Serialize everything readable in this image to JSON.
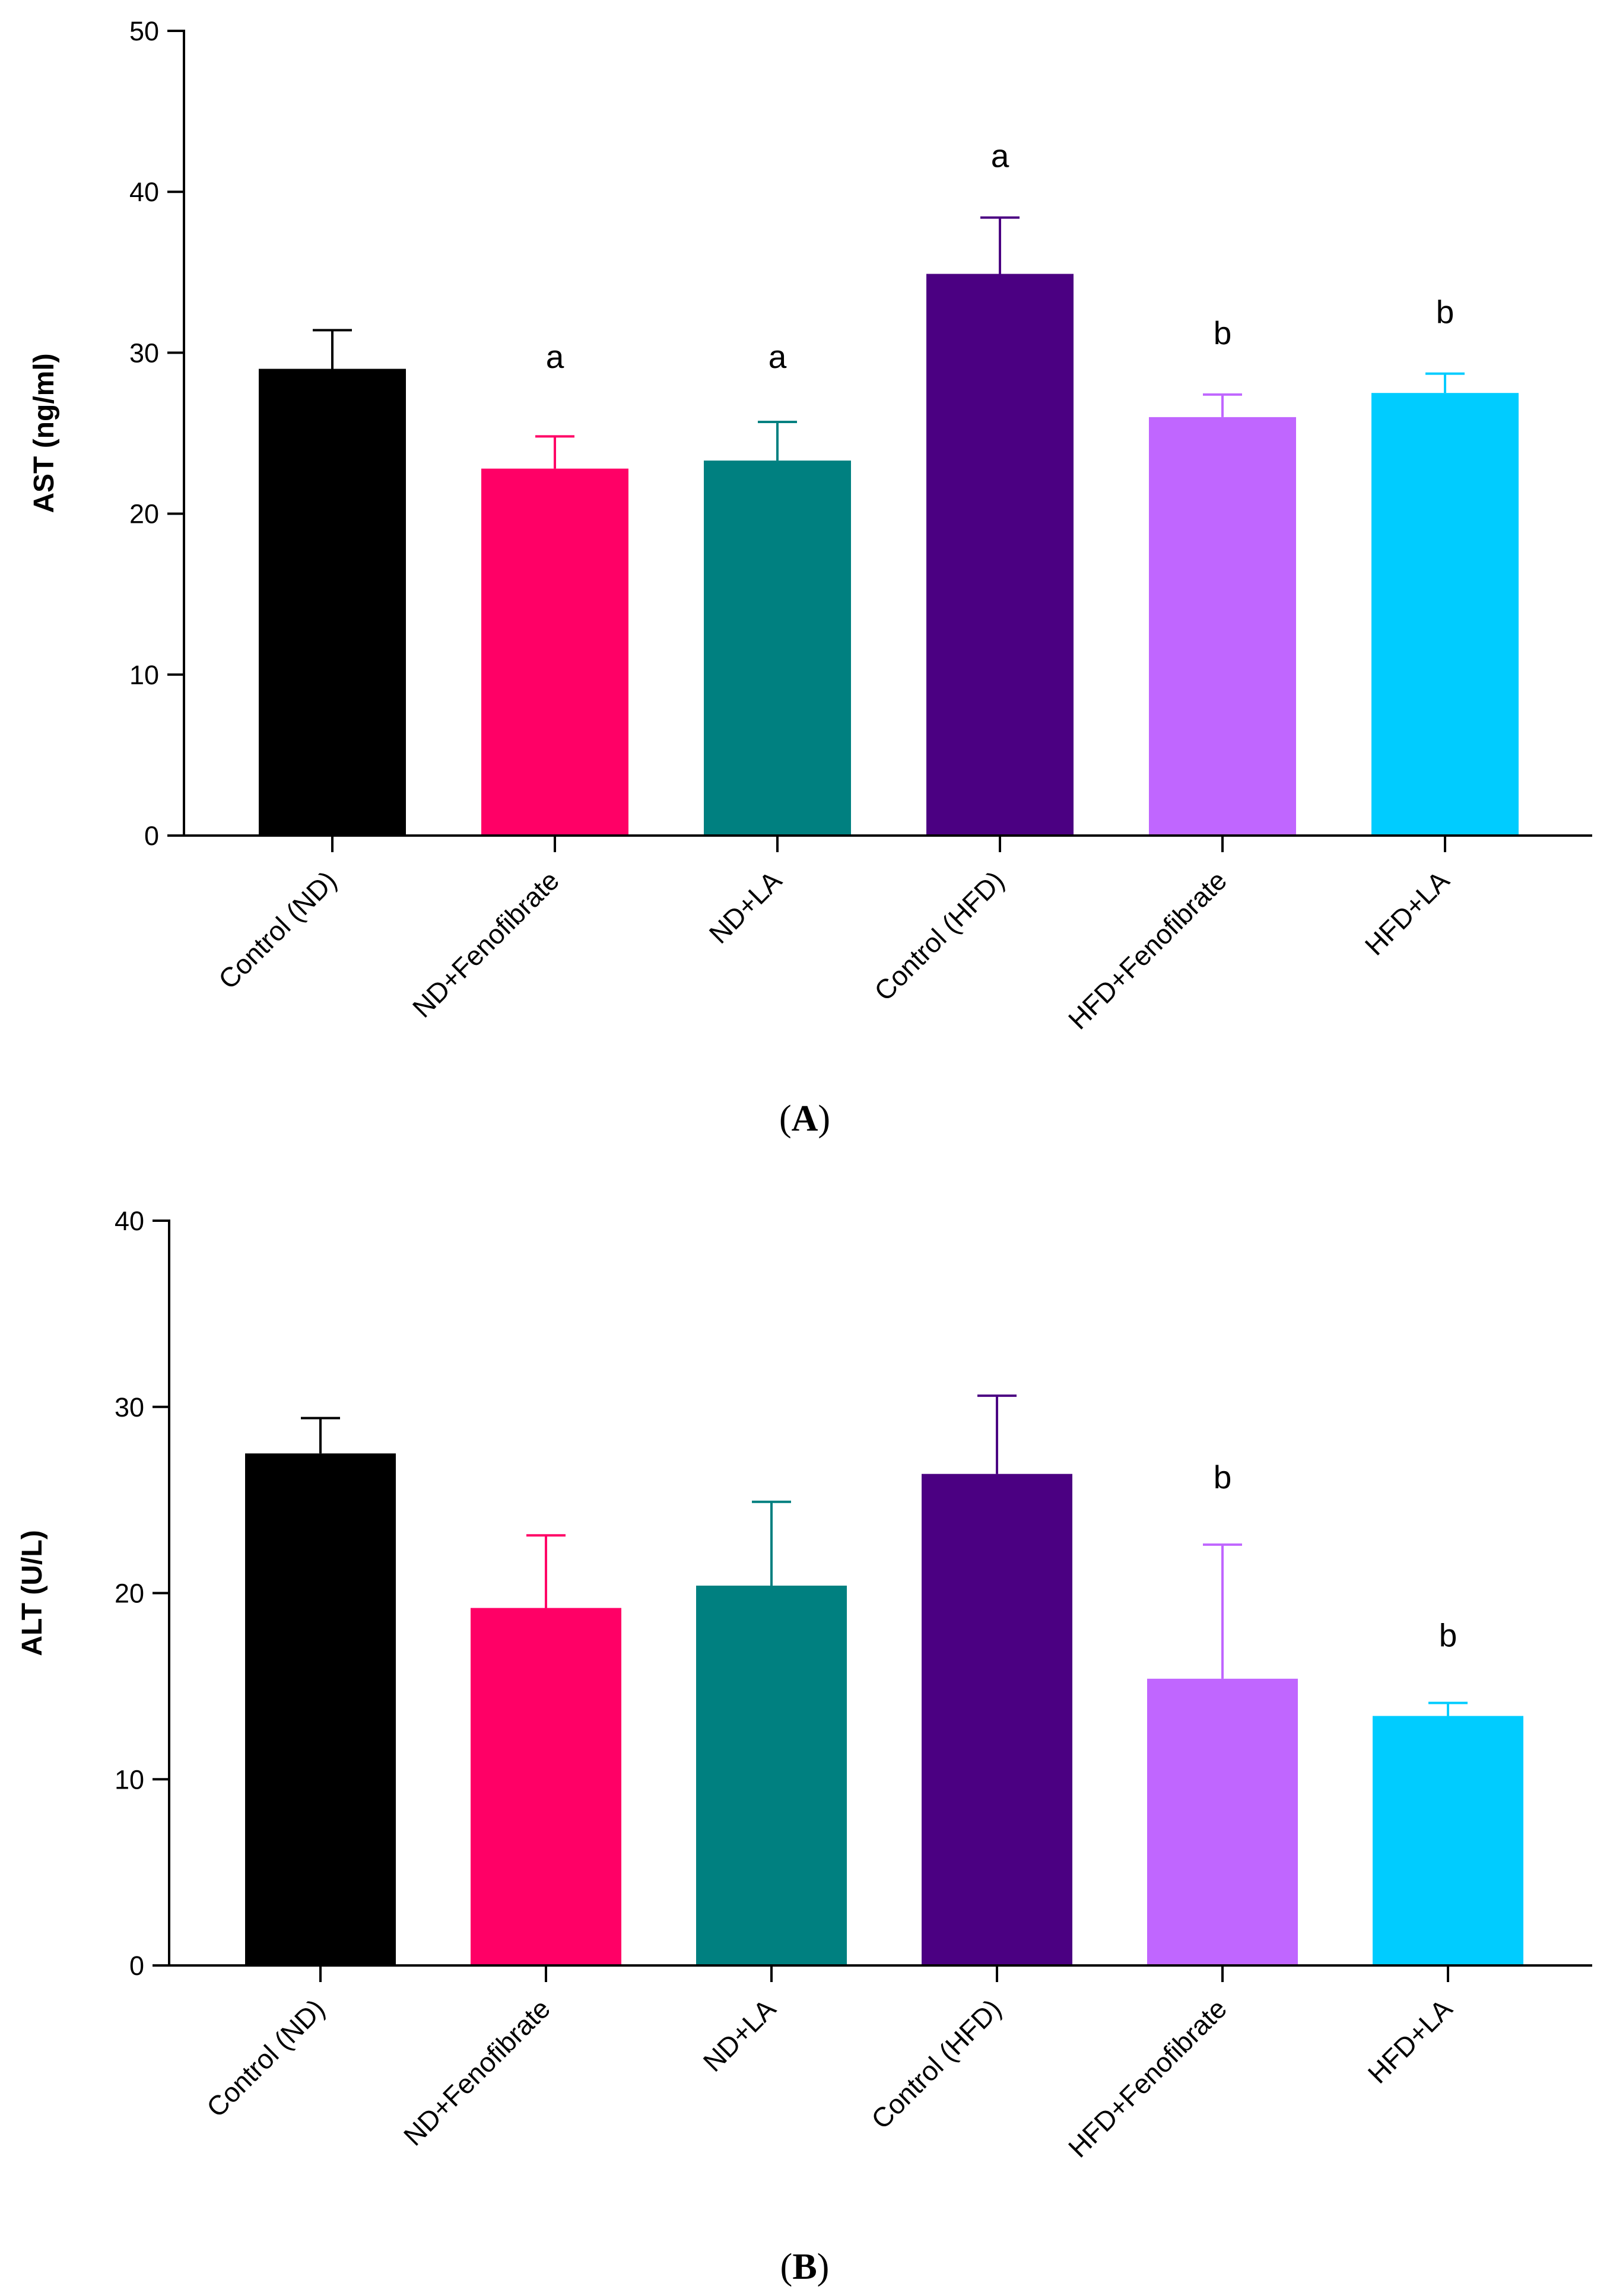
{
  "chart_data": [
    {
      "type": "bar",
      "panel_label": "A",
      "ylabel": "AST (ng/ml)",
      "ylim": [
        0,
        50
      ],
      "yticks": [
        0,
        10,
        20,
        30,
        40,
        50
      ],
      "grid": false,
      "categories": [
        "Control (ND)",
        "ND+Fenofibrate",
        "ND+LA",
        "Control (HFD)",
        "HFD+Fenofibrate",
        "HFD+LA"
      ],
      "values": [
        29.0,
        22.8,
        23.3,
        34.9,
        26.0,
        27.5
      ],
      "errors": [
        2.4,
        2.0,
        2.4,
        3.5,
        1.4,
        1.2
      ],
      "annotations": [
        "",
        "a",
        "a",
        "a",
        "b",
        "b"
      ],
      "colors": [
        "#000000",
        "#FF0066",
        "#008080",
        "#4B0082",
        "#C066FF",
        "#00CCFF"
      ]
    },
    {
      "type": "bar",
      "panel_label": "B",
      "ylabel": "ALT (U/L)",
      "ylim": [
        0,
        40
      ],
      "yticks": [
        0,
        10,
        20,
        30,
        40
      ],
      "grid": false,
      "categories": [
        "Control (ND)",
        "ND+Fenofibrate",
        "ND+LA",
        "Control (HFD)",
        "HFD+Fenofibrate",
        "HFD+LA"
      ],
      "values": [
        27.5,
        19.2,
        20.4,
        26.4,
        15.4,
        13.4
      ],
      "errors": [
        1.9,
        3.9,
        4.5,
        4.2,
        7.2,
        0.7
      ],
      "annotations": [
        "",
        "",
        "",
        "",
        "b",
        "b"
      ],
      "colors": [
        "#000000",
        "#FF0066",
        "#008080",
        "#4B0082",
        "#C066FF",
        "#00CCFF"
      ]
    }
  ]
}
